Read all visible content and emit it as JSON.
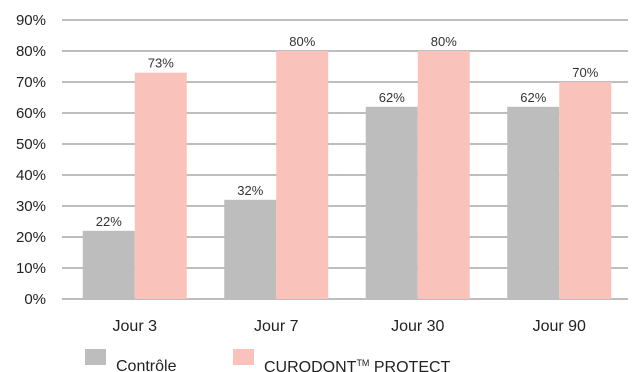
{
  "chart_data": {
    "type": "bar",
    "categories": [
      "Jour 3",
      "Jour 7",
      "Jour 30",
      "Jour 90"
    ],
    "series": [
      {
        "name": "Contrôle",
        "values": [
          22,
          32,
          62,
          62
        ],
        "color": "#bcbdbc"
      },
      {
        "name": "CURODONT™ PROTECT",
        "values": [
          73,
          80,
          80,
          70
        ],
        "color": "#f9c3bc"
      }
    ],
    "value_suffix": "%",
    "ylim": [
      0,
      90
    ],
    "yticks": [
      0,
      10,
      20,
      30,
      40,
      50,
      60,
      70,
      80,
      90
    ],
    "grid": true,
    "legend_position": "bottom",
    "legend": {
      "items": [
        {
          "text": "Contrôle"
        },
        {
          "text": "CURODONT",
          "sup": "TM",
          "suffix": " PROTECT"
        }
      ]
    }
  }
}
